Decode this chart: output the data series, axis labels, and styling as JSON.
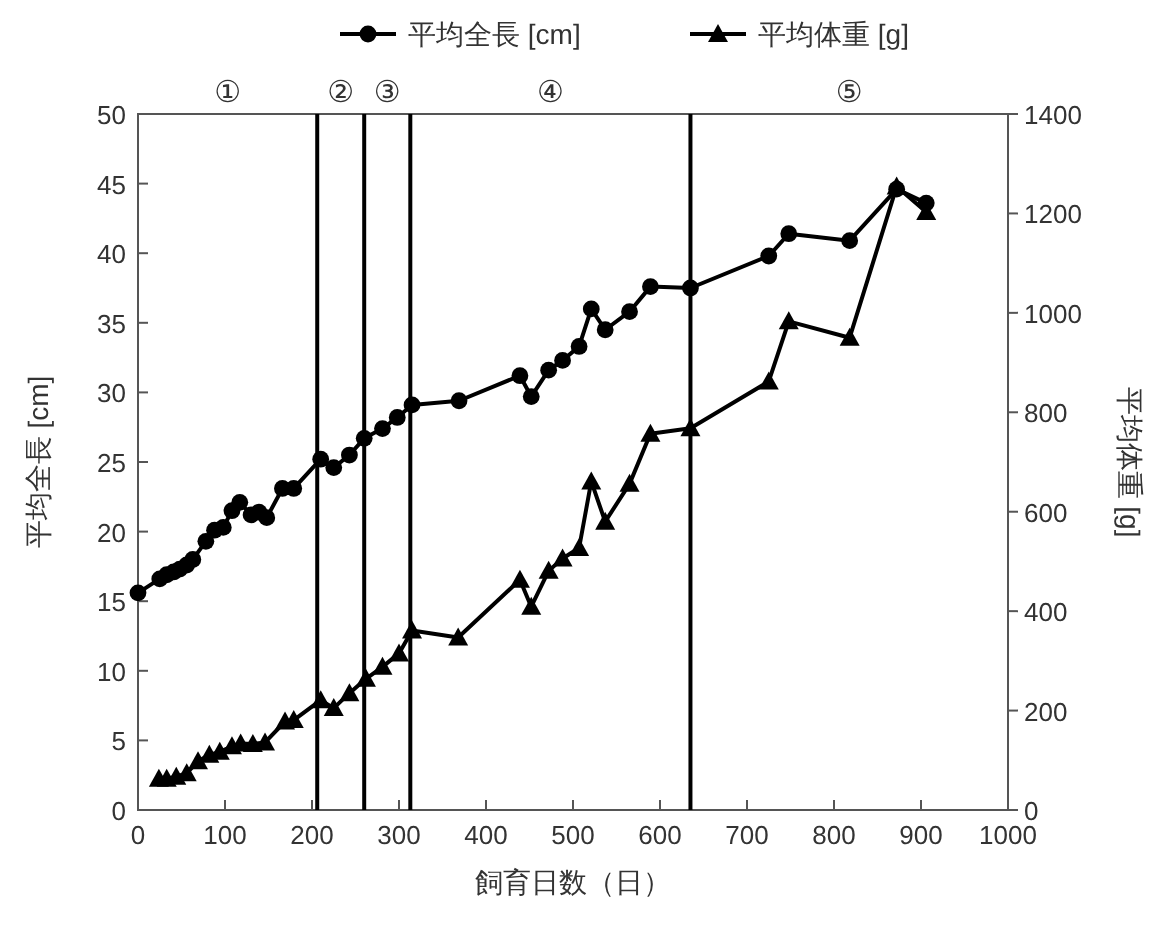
{
  "chart_data": {
    "type": "line",
    "xlabel": "飼育日数（日）",
    "ylabel": "平均全長 [cm]",
    "y2label": "平均体重 [g]",
    "xlim": [
      0,
      1000
    ],
    "xticks": [
      0,
      100,
      200,
      300,
      400,
      500,
      600,
      700,
      800,
      900,
      1000
    ],
    "ylim": [
      0,
      50
    ],
    "yticks": [
      0,
      5,
      10,
      15,
      20,
      25,
      30,
      35,
      40,
      45,
      50
    ],
    "y2lim": [
      0,
      1400
    ],
    "y2ticks": [
      0,
      200,
      400,
      600,
      800,
      1000,
      1200,
      1400
    ],
    "legend": "top",
    "grid": false,
    "line_style": "solid",
    "series": [
      {
        "name": "平均全長 [cm]",
        "color": "#000000",
        "marker": "circle",
        "x": [
          0,
          25,
          33,
          41,
          48,
          56,
          63,
          78,
          88,
          98,
          108,
          117,
          130,
          139,
          148,
          166,
          179,
          210,
          225,
          243,
          260,
          281,
          298,
          315,
          369,
          439,
          452,
          472,
          488,
          507,
          521,
          537,
          565,
          589,
          635,
          725,
          748,
          818,
          872,
          906
        ],
        "values": [
          15.6,
          16.6,
          16.9,
          17.1,
          17.3,
          17.6,
          18.0,
          19.3,
          20.1,
          20.3,
          21.5,
          22.1,
          21.2,
          21.4,
          21.0,
          23.1,
          23.1,
          25.2,
          24.6,
          25.5,
          26.7,
          27.4,
          28.2,
          29.1,
          29.4,
          31.2,
          29.7,
          31.6,
          32.3,
          33.3,
          36.0,
          34.5,
          35.8,
          37.6,
          37.5,
          39.8,
          41.4,
          40.9,
          44.6,
          43.6
        ]
      },
      {
        "name": "平均体重 [g]",
        "color": "#000000",
        "marker": "triangle",
        "axis": "y2",
        "x": [
          24,
          33,
          44,
          56,
          69,
          82,
          94,
          108,
          118,
          132,
          146,
          169,
          179,
          210,
          225,
          243,
          262,
          281,
          300,
          315,
          368,
          439,
          452,
          472,
          488,
          507,
          521,
          537,
          565,
          589,
          635,
          725,
          748,
          818,
          872,
          906
        ],
        "values": [
          63,
          63,
          67,
          74,
          98,
          111,
          117,
          128,
          134,
          133,
          136,
          178,
          181,
          221,
          205,
          235,
          264,
          288,
          315,
          361,
          347,
          463,
          409,
          481,
          506,
          527,
          661,
          580,
          656,
          757,
          768,
          862,
          983,
          950,
          1254,
          1203
        ]
      }
    ],
    "ref_lines": [
      {
        "axis": "x",
        "value": 206,
        "color": "#000000"
      },
      {
        "axis": "x",
        "value": 260,
        "color": "#000000"
      },
      {
        "axis": "x",
        "value": 313,
        "color": "#000000"
      },
      {
        "axis": "x",
        "value": 635,
        "color": "#000000"
      }
    ],
    "annotations": [
      "①",
      "②",
      "③",
      "④",
      "⑤"
    ]
  }
}
